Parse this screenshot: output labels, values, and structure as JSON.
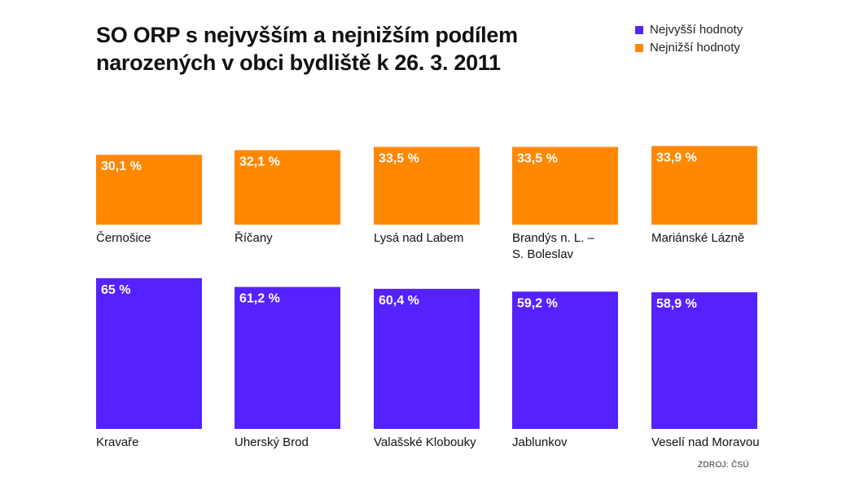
{
  "chart_data": {
    "type": "bar",
    "title": "SO ORP s nejvyšším a nejnižším podílem narozených v obci bydliště k 26. 3. 2011",
    "legend": [
      {
        "name": "Nejvyšší hodnoty",
        "color": "#5522FF"
      },
      {
        "name": "Nejnižší hodnoty",
        "color": "#FF8800"
      }
    ],
    "legend_placement": "top-right",
    "source": "ZDROJ: ČSÚ",
    "series": [
      {
        "name": "Nejnižší hodnoty",
        "color": "#FF8800",
        "categories": [
          "Černošice",
          "Říčany",
          "Lysá nad Labem",
          "Brandýs n. L. –\nS. Boleslav",
          "Mariánské Lázně"
        ],
        "values": [
          30.1,
          32.1,
          33.5,
          33.5,
          33.9
        ],
        "labels": [
          "30,1 %",
          "32,1 %",
          "33,5 %",
          "33,5 %",
          "33,9 %"
        ]
      },
      {
        "name": "Nejvyšší hodnoty",
        "color": "#5522FF",
        "categories": [
          "Kravaře",
          "Uherský Brod",
          "Valašské Klobouky",
          "Jablunkov",
          "Veselí nad Moravou"
        ],
        "values": [
          65,
          61.2,
          60.4,
          59.2,
          58.9
        ],
        "labels": [
          "65 %",
          "61,2 %",
          "60,4 %",
          "59,2 %",
          "58,9 %"
        ]
      }
    ],
    "axes_visible": false,
    "grid": false
  }
}
